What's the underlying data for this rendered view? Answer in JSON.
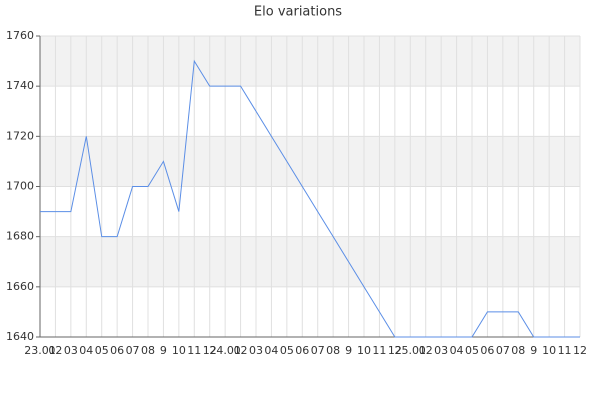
{
  "chart_data": {
    "type": "line",
    "title": "Elo variations",
    "categories": [
      "23.01",
      "02",
      "03",
      "04",
      "05",
      "06",
      "07",
      "08",
      "9",
      "10",
      "11",
      "12",
      "24.01",
      "02",
      "03",
      "04",
      "05",
      "06",
      "07",
      "08",
      "9",
      "10",
      "11",
      "12",
      "25.01",
      "02",
      "03",
      "04",
      "05",
      "06",
      "07",
      "08",
      "9",
      "10",
      "11",
      "12"
    ],
    "series": [
      {
        "name": "Elo",
        "color": "#5b8ee6",
        "values": [
          1690,
          1690,
          1690,
          1720,
          1680,
          1680,
          1700,
          1700,
          1710,
          1690,
          1750,
          1740,
          1740,
          1740,
          1730,
          1720,
          1710,
          1700,
          1690,
          1680,
          1670,
          1660,
          1650,
          1640,
          1640,
          1640,
          1640,
          1640,
          1640,
          1650,
          1650,
          1650,
          1640,
          1640,
          1640,
          1640
        ]
      }
    ],
    "ylim": [
      1640,
      1760
    ],
    "yticks": [
      1640,
      1660,
      1680,
      1700,
      1720,
      1740,
      1760
    ],
    "grid": true
  }
}
